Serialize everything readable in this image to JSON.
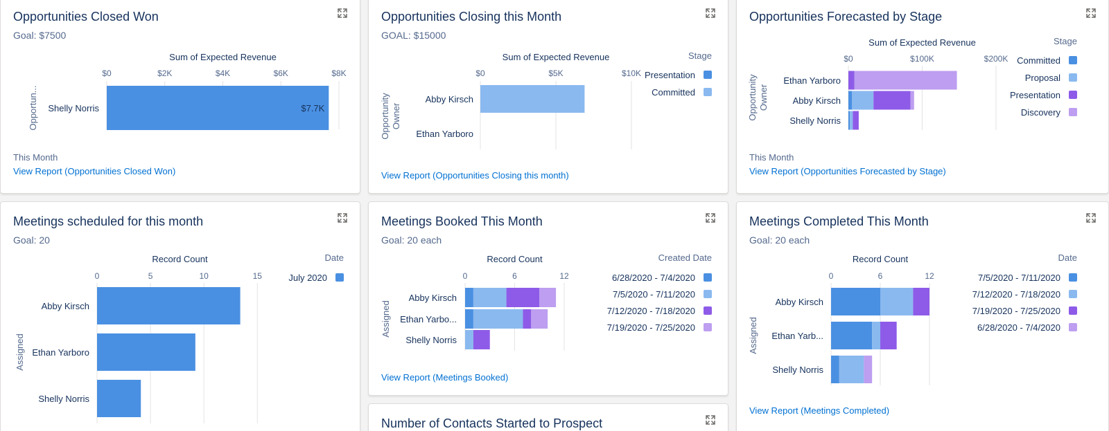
{
  "colors": {
    "dark_blue": "#4a90e2",
    "light_blue": "#8ab9ef",
    "purple": "#8e5be8",
    "light_purple": "#bd9ef0",
    "grid": "#e3e3e3",
    "link": "#0070d2"
  },
  "cards": [
    {
      "title": "Opportunities Closed Won",
      "goal": "Goal: $7500",
      "footer_text": "This Month",
      "link": "View Report (Opportunities Closed Won)",
      "chart_data": {
        "type": "bar",
        "orientation": "horizontal",
        "axis_title": "Sum of Expected Revenue",
        "y_title": "Opportun...",
        "ticks": [
          "$0",
          "$2K",
          "$4K",
          "$6K",
          "$8K"
        ],
        "xlim": [
          0,
          8000
        ],
        "categories": [
          "Shelly Norris"
        ],
        "series": [
          {
            "values": [
              7650
            ],
            "color": "#4a90e2"
          }
        ],
        "data_labels": [
          "$7.7K"
        ],
        "legend": null
      }
    },
    {
      "title": "Opportunities Closing this Month",
      "goal": "GOAL: $15000",
      "footer_text": "",
      "link": "View Report (Opportunities Closing this month)",
      "chart_data": {
        "type": "bar",
        "orientation": "horizontal",
        "stacked": true,
        "axis_title": "Sum of Expected Revenue",
        "y_title": "Opportunity Owner",
        "ticks": [
          "$0",
          "$5K",
          "$10K"
        ],
        "xlim": [
          0,
          10000
        ],
        "categories": [
          "Abby Kirsch",
          "Ethan Yarboro"
        ],
        "series": [
          {
            "name": "Presentation",
            "values": [
              0,
              0
            ],
            "color": "#4a90e2"
          },
          {
            "name": "Committed",
            "values": [
              6900,
              0
            ],
            "color": "#8ab9ef"
          }
        ],
        "legend": {
          "title": "Stage",
          "position": "right"
        }
      }
    },
    {
      "title": "Opportunities Forecasted by Stage",
      "goal": "",
      "footer_text": "This Month",
      "link": "View Report (Opportunities Forecasted by Stage)",
      "chart_data": {
        "type": "bar",
        "orientation": "horizontal",
        "stacked": true,
        "axis_title": "Sum of Expected Revenue",
        "y_title": "Opportunity Owner",
        "ticks": [
          "$0",
          "$100K",
          "$200K"
        ],
        "xlim": [
          0,
          200000
        ],
        "categories": [
          "Ethan Yarboro",
          "Abby Kirsch",
          "Shelly Norris"
        ],
        "series": [
          {
            "name": "Committed",
            "values": [
              0,
              5000,
              2000
            ],
            "color": "#4a90e2"
          },
          {
            "name": "Proposal",
            "values": [
              0,
              29000,
              4000
            ],
            "color": "#8ab9ef"
          },
          {
            "name": "Presentation",
            "values": [
              8000,
              50000,
              8000
            ],
            "color": "#8e5be8"
          },
          {
            "name": "Discovery",
            "values": [
              139000,
              5000,
              0
            ],
            "color": "#bd9ef0"
          }
        ],
        "legend": {
          "title": "Stage",
          "position": "right"
        }
      }
    },
    {
      "title": "Meetings scheduled for this month",
      "goal": "Goal: 20",
      "footer_text": "",
      "link": "",
      "chart_data": {
        "type": "bar",
        "orientation": "horizontal",
        "stacked": true,
        "axis_title": "Record Count",
        "y_title": "Assigned",
        "ticks": [
          "0",
          "5",
          "10",
          "15"
        ],
        "xlim": [
          0,
          15.5
        ],
        "categories": [
          "Abby Kirsch",
          "Ethan Yarboro",
          "Shelly Norris"
        ],
        "series": [
          {
            "name": "July 2020",
            "values": [
              13.4,
              9.2,
              4.1
            ],
            "color": "#4a90e2"
          }
        ],
        "legend": {
          "title": "Date",
          "position": "right"
        }
      }
    },
    {
      "title": "Meetings Booked This Month",
      "goal": "Goal: 20 each",
      "footer_text": "",
      "link": "View Report (Meetings Booked)",
      "chart_data": {
        "type": "bar",
        "orientation": "horizontal",
        "stacked": true,
        "axis_title": "Record Count",
        "y_title": "Assigned",
        "ticks": [
          "0",
          "6",
          "12"
        ],
        "xlim": [
          0,
          12
        ],
        "categories": [
          "Abby Kirsch",
          "Ethan Yarbo...",
          "Shelly Norris"
        ],
        "series": [
          {
            "name": "6/28/2020 - 7/4/2020",
            "values": [
              1,
              1,
              0
            ],
            "color": "#4a90e2"
          },
          {
            "name": "7/5/2020 - 7/11/2020",
            "values": [
              4,
              6,
              1
            ],
            "color": "#8ab9ef"
          },
          {
            "name": "7/12/2020 - 7/18/2020",
            "values": [
              4,
              1,
              2
            ],
            "color": "#8e5be8"
          },
          {
            "name": "7/19/2020 - 7/25/2020",
            "values": [
              2,
              2,
              0
            ],
            "color": "#bd9ef0"
          }
        ],
        "legend": {
          "title": "Created Date",
          "position": "right"
        }
      }
    },
    {
      "title": "Meetings Completed This Month",
      "goal": "Goal: 20 each",
      "footer_text": "",
      "link": "View Report (Meetings Completed)",
      "chart_data": {
        "type": "bar",
        "orientation": "horizontal",
        "stacked": true,
        "axis_title": "Record Count",
        "y_title": "Assigned",
        "ticks": [
          "0",
          "6",
          "12"
        ],
        "xlim": [
          0,
          12
        ],
        "categories": [
          "Abby Kirsch",
          "Ethan Yarb...",
          "Shelly Norris"
        ],
        "series": [
          {
            "name": "7/5/2020 - 7/11/2020",
            "values": [
              6,
              5,
              1
            ],
            "color": "#4a90e2"
          },
          {
            "name": "7/12/2020 - 7/18/2020",
            "values": [
              4,
              1,
              3
            ],
            "color": "#8ab9ef"
          },
          {
            "name": "7/19/2020 - 7/25/2020",
            "values": [
              2,
              2,
              0
            ],
            "color": "#8e5be8"
          },
          {
            "name": "6/28/2020 - 7/4/2020",
            "values": [
              0,
              0,
              1
            ],
            "color": "#bd9ef0"
          }
        ],
        "legend": {
          "title": "Date",
          "position": "right"
        }
      }
    },
    {
      "title": "Number of Contacts Started to Prospect",
      "goal": "",
      "footer_text": "",
      "link": "",
      "chart_data": null
    }
  ]
}
